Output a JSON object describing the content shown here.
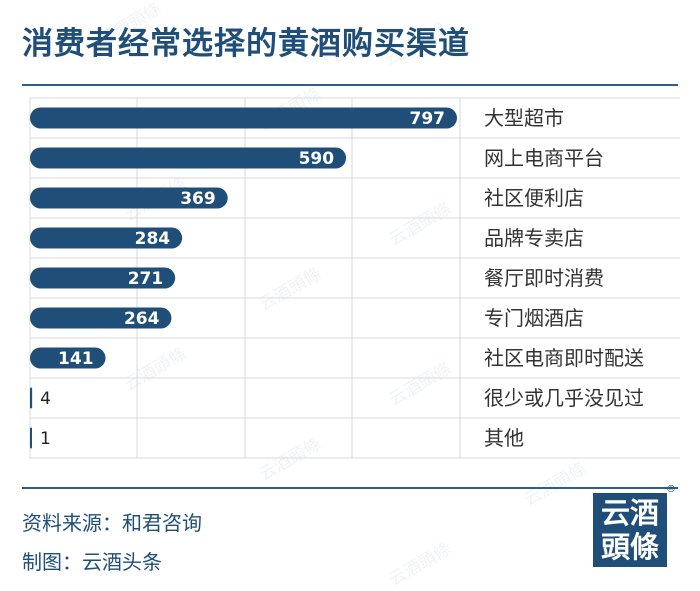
{
  "title": "消费者经常选择的黄酒购买渠道",
  "footer": {
    "source": "资料来源：和君咨询",
    "credit": "制图：云酒头条"
  },
  "logo": {
    "line1": "云酒",
    "line2": "頭條",
    "reg": "®"
  },
  "watermark": "云酒頭條",
  "colors": {
    "bar": "#1f4e79",
    "title": "#1f4e79",
    "grid": "#d9d9d9"
  },
  "chart_data": {
    "type": "bar",
    "orientation": "horizontal",
    "title": "消费者经常选择的黄酒购买渠道",
    "categories": [
      "大型超市",
      "网上电商平台",
      "社区便利店",
      "品牌专卖店",
      "餐厅即时消费",
      "专门烟酒店",
      "社区电商即时配送",
      "很少或几乎没见过",
      "其他"
    ],
    "values": [
      797,
      590,
      369,
      284,
      271,
      264,
      141,
      4,
      1
    ],
    "xlim": [
      0,
      800
    ],
    "grid": true,
    "data_labels": true
  }
}
